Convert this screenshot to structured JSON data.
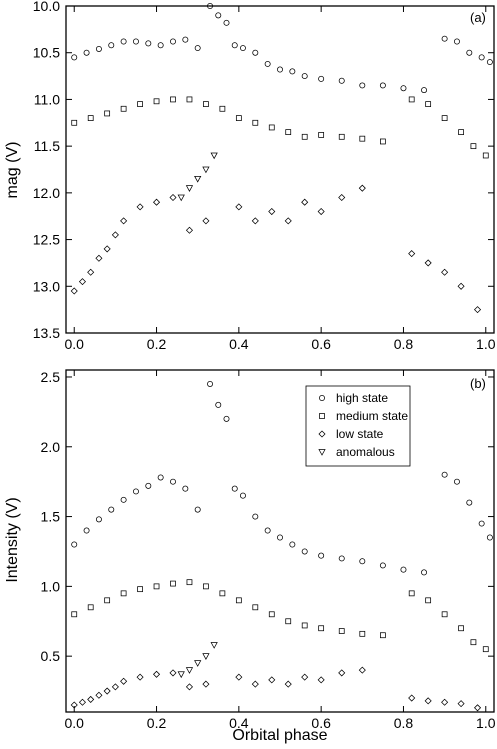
{
  "chart_data": [
    {
      "type": "scatter",
      "panel": "(a)",
      "xlabel": "",
      "ylabel": "mag (V)",
      "xlim": [
        -0.02,
        1.02
      ],
      "ylim": [
        10.0,
        13.5
      ],
      "y_inverted": true,
      "xticks": [
        "0.0",
        "0.2",
        "0.4",
        "0.6",
        "0.8",
        "1.0"
      ],
      "yticks": [
        "10.0",
        "10.5",
        "11.0",
        "11.5",
        "12.0",
        "12.5",
        "13.0",
        "13.5"
      ],
      "series": [
        {
          "name": "high state",
          "marker": "circle",
          "x": [
            0.0,
            0.03,
            0.06,
            0.09,
            0.12,
            0.15,
            0.18,
            0.21,
            0.24,
            0.27,
            0.3,
            0.33,
            0.35,
            0.37,
            0.39,
            0.41,
            0.44,
            0.47,
            0.5,
            0.53,
            0.56,
            0.6,
            0.65,
            0.7,
            0.75,
            0.8,
            0.85,
            0.9,
            0.93,
            0.96,
            0.99,
            1.01
          ],
          "y": [
            10.55,
            10.5,
            10.46,
            10.42,
            10.38,
            10.38,
            10.4,
            10.42,
            10.38,
            10.36,
            10.45,
            10.0,
            10.1,
            10.18,
            10.42,
            10.45,
            10.5,
            10.62,
            10.68,
            10.7,
            10.75,
            10.78,
            10.8,
            10.85,
            10.85,
            10.88,
            10.9,
            10.35,
            10.38,
            10.5,
            10.55,
            10.6
          ]
        },
        {
          "name": "medium state",
          "marker": "square",
          "x": [
            0.0,
            0.04,
            0.08,
            0.12,
            0.16,
            0.2,
            0.24,
            0.28,
            0.32,
            0.36,
            0.4,
            0.44,
            0.48,
            0.52,
            0.56,
            0.6,
            0.65,
            0.7,
            0.75,
            0.82,
            0.86,
            0.9,
            0.94,
            0.97,
            1.0
          ],
          "y": [
            11.25,
            11.2,
            11.15,
            11.1,
            11.05,
            11.02,
            11.0,
            11.0,
            11.05,
            11.1,
            11.2,
            11.25,
            11.3,
            11.35,
            11.4,
            11.38,
            11.4,
            11.42,
            11.45,
            11.0,
            11.05,
            11.2,
            11.35,
            11.5,
            11.6
          ]
        },
        {
          "name": "low state",
          "marker": "diamond",
          "x": [
            0.0,
            0.02,
            0.04,
            0.06,
            0.08,
            0.1,
            0.12,
            0.16,
            0.2,
            0.24,
            0.28,
            0.32,
            0.4,
            0.44,
            0.48,
            0.52,
            0.56,
            0.6,
            0.65,
            0.7,
            0.82,
            0.86,
            0.9,
            0.94,
            0.98
          ],
          "y": [
            13.05,
            12.95,
            12.85,
            12.7,
            12.6,
            12.45,
            12.3,
            12.15,
            12.1,
            12.05,
            12.4,
            12.3,
            12.15,
            12.3,
            12.2,
            12.3,
            12.1,
            12.2,
            12.05,
            11.95,
            12.65,
            12.75,
            12.85,
            13.0,
            13.25
          ]
        },
        {
          "name": "anomalous",
          "marker": "triangle-down",
          "x": [
            0.26,
            0.28,
            0.3,
            0.32,
            0.34
          ],
          "y": [
            12.05,
            11.95,
            11.85,
            11.75,
            11.6
          ]
        }
      ]
    },
    {
      "type": "scatter",
      "panel": "(b)",
      "xlabel": "Orbital phase",
      "ylabel": "Intensity (V)",
      "xlim": [
        -0.02,
        1.02
      ],
      "ylim": [
        0.1,
        2.55
      ],
      "xticks": [
        "0.0",
        "0.2",
        "0.4",
        "0.6",
        "0.8",
        "1.0"
      ],
      "yticks": [
        "0.5",
        "1.0",
        "1.5",
        "2.0",
        "2.5"
      ],
      "legend": {
        "position": "top-right",
        "entries": [
          "high state",
          "medium state",
          "low state",
          "anomalous"
        ]
      },
      "series": [
        {
          "name": "high state",
          "marker": "circle",
          "x": [
            0.0,
            0.03,
            0.06,
            0.09,
            0.12,
            0.15,
            0.18,
            0.21,
            0.24,
            0.27,
            0.3,
            0.33,
            0.35,
            0.37,
            0.39,
            0.41,
            0.44,
            0.47,
            0.5,
            0.53,
            0.56,
            0.6,
            0.65,
            0.7,
            0.75,
            0.8,
            0.85,
            0.9,
            0.93,
            0.96,
            0.99,
            1.01
          ],
          "y": [
            1.3,
            1.4,
            1.48,
            1.55,
            1.62,
            1.68,
            1.72,
            1.78,
            1.75,
            1.7,
            1.55,
            2.45,
            2.3,
            2.2,
            1.7,
            1.65,
            1.5,
            1.4,
            1.35,
            1.3,
            1.25,
            1.22,
            1.2,
            1.18,
            1.15,
            1.12,
            1.1,
            1.8,
            1.75,
            1.6,
            1.45,
            1.35
          ]
        },
        {
          "name": "medium state",
          "marker": "square",
          "x": [
            0.0,
            0.04,
            0.08,
            0.12,
            0.16,
            0.2,
            0.24,
            0.28,
            0.32,
            0.36,
            0.4,
            0.44,
            0.48,
            0.52,
            0.56,
            0.6,
            0.65,
            0.7,
            0.75,
            0.82,
            0.86,
            0.9,
            0.94,
            0.97,
            1.0
          ],
          "y": [
            0.8,
            0.85,
            0.9,
            0.95,
            0.98,
            1.0,
            1.02,
            1.03,
            1.0,
            0.95,
            0.9,
            0.85,
            0.8,
            0.75,
            0.72,
            0.7,
            0.68,
            0.66,
            0.65,
            0.95,
            0.9,
            0.8,
            0.7,
            0.6,
            0.55
          ]
        },
        {
          "name": "low state",
          "marker": "diamond",
          "x": [
            0.0,
            0.02,
            0.04,
            0.06,
            0.08,
            0.1,
            0.12,
            0.16,
            0.2,
            0.24,
            0.28,
            0.32,
            0.4,
            0.44,
            0.48,
            0.52,
            0.56,
            0.6,
            0.65,
            0.7,
            0.82,
            0.86,
            0.9,
            0.94,
            0.98
          ],
          "y": [
            0.15,
            0.17,
            0.19,
            0.22,
            0.25,
            0.28,
            0.32,
            0.35,
            0.37,
            0.38,
            0.28,
            0.3,
            0.35,
            0.3,
            0.33,
            0.3,
            0.35,
            0.33,
            0.38,
            0.4,
            0.2,
            0.18,
            0.17,
            0.16,
            0.13
          ]
        },
        {
          "name": "anomalous",
          "marker": "triangle-down",
          "x": [
            0.26,
            0.28,
            0.3,
            0.32,
            0.34
          ],
          "y": [
            0.37,
            0.4,
            0.45,
            0.5,
            0.58
          ]
        }
      ]
    }
  ]
}
